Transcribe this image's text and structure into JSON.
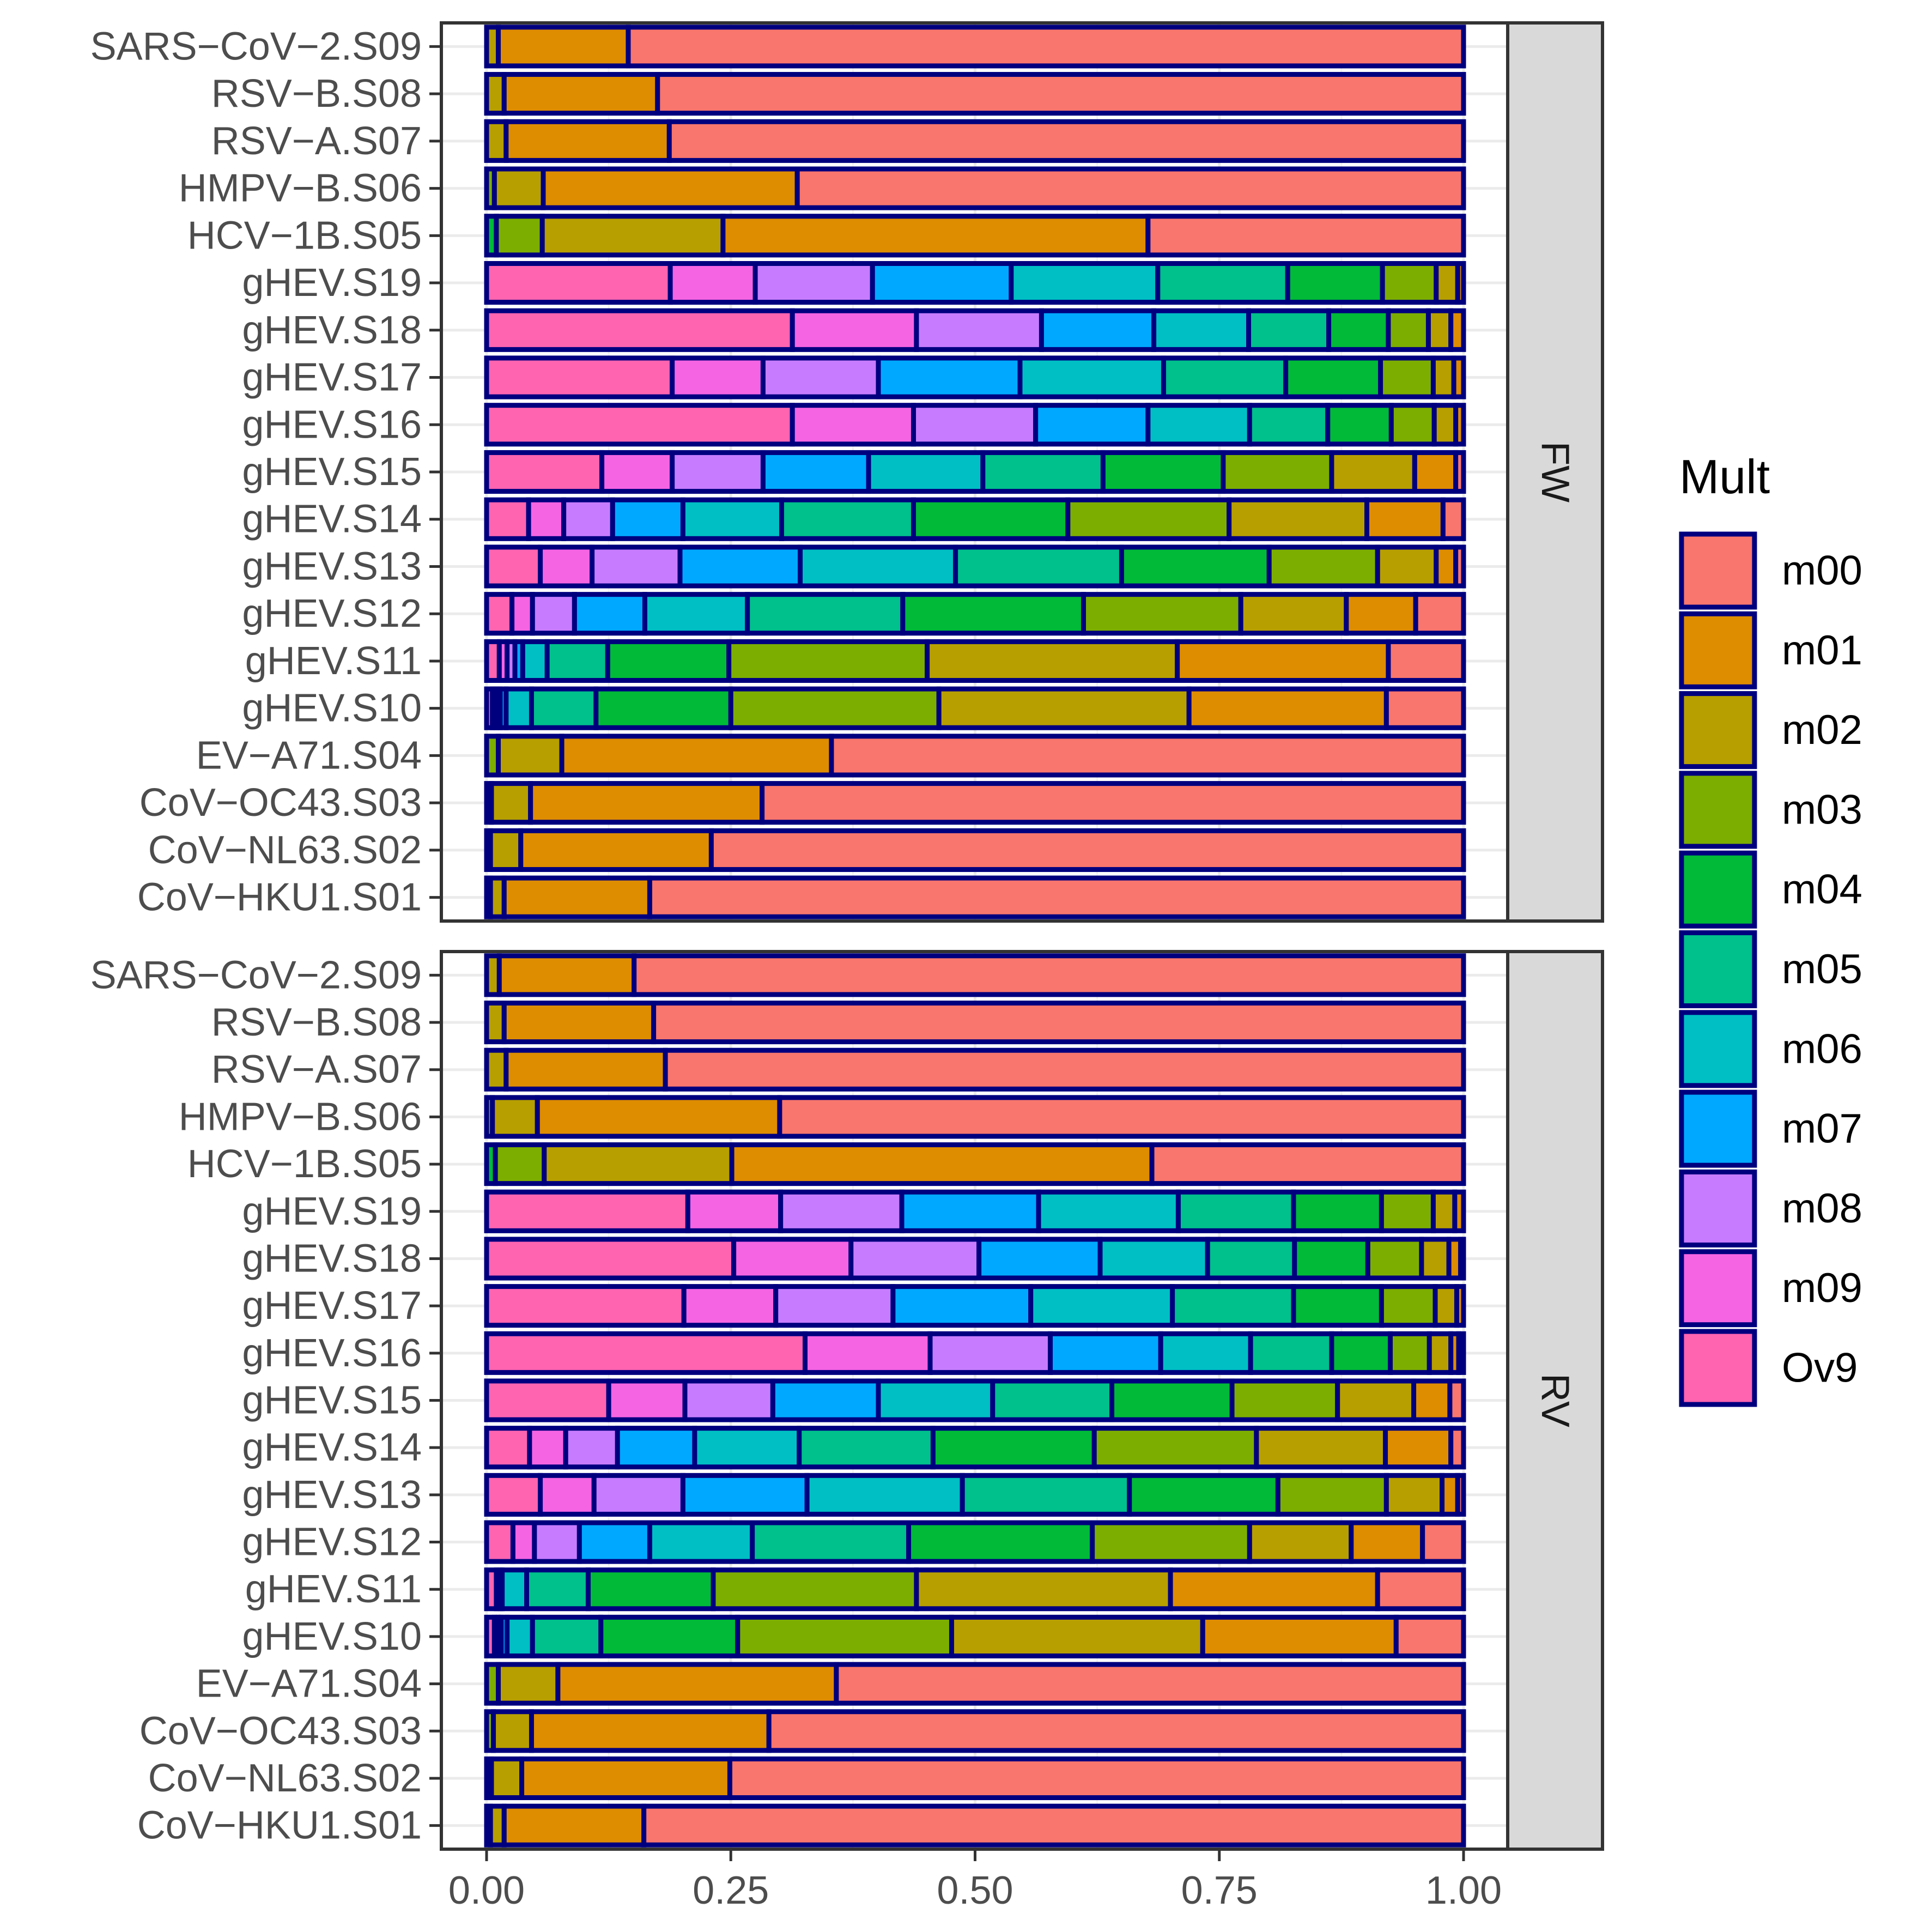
{
  "chart_data": {
    "type": "bar",
    "orientation": "horizontal",
    "stacked": true,
    "x_axis": {
      "ticks": [
        0,
        0.25,
        0.5,
        0.75,
        1.0
      ],
      "tick_labels": [
        "0.00",
        "0.25",
        "0.50",
        "0.75",
        "1.00"
      ],
      "xlim": [
        0,
        1.05
      ]
    },
    "categories": [
      "SARS−CoV−2.S09",
      "RSV−B.S08",
      "RSV−A.S07",
      "HMPV−B.S06",
      "HCV−1B.S05",
      "gHEV.S19",
      "gHEV.S18",
      "gHEV.S17",
      "gHEV.S16",
      "gHEV.S15",
      "gHEV.S14",
      "gHEV.S13",
      "gHEV.S12",
      "gHEV.S11",
      "gHEV.S10",
      "EV−A71.S04",
      "CoV−OC43.S03",
      "CoV−NL63.S02",
      "CoV−HKU1.S01"
    ],
    "stack_order": [
      "Ov9",
      "m09",
      "m08",
      "m07",
      "m06",
      "m05",
      "m04",
      "m03",
      "m02",
      "m01",
      "m00"
    ],
    "legend": {
      "title": "Mult",
      "position": "right",
      "entries": [
        {
          "key": "m00",
          "label": "m00",
          "color": "#F8766D"
        },
        {
          "key": "m01",
          "label": "m01",
          "color": "#DE8C00"
        },
        {
          "key": "m02",
          "label": "m02",
          "color": "#B79F00"
        },
        {
          "key": "m03",
          "label": "m03",
          "color": "#7CAE00"
        },
        {
          "key": "m04",
          "label": "m04",
          "color": "#00BA38"
        },
        {
          "key": "m05",
          "label": "m05",
          "color": "#00C08B"
        },
        {
          "key": "m06",
          "label": "m06",
          "color": "#00BFC4"
        },
        {
          "key": "m07",
          "label": "m07",
          "color": "#00A9FF"
        },
        {
          "key": "m08",
          "label": "m08",
          "color": "#C77CFF"
        },
        {
          "key": "m09",
          "label": "m09",
          "color": "#F564E3"
        },
        {
          "key": "Ov9",
          "label": "Ov9",
          "color": "#FF64B0"
        }
      ]
    },
    "bar_outline_color": "#00007F",
    "panels": [
      {
        "label": "FW",
        "rows": [
          {
            "Ov9": 0,
            "m09": 0,
            "m08": 0,
            "m07": 0,
            "m06": 0,
            "m05": 0,
            "m04": 0,
            "m03": 0,
            "m02": 0.012,
            "m01": 0.133,
            "m00": 0.855
          },
          {
            "Ov9": 0,
            "m09": 0,
            "m08": 0,
            "m07": 0,
            "m06": 0,
            "m05": 0,
            "m04": 0,
            "m03": 0,
            "m02": 0.018,
            "m01": 0.157,
            "m00": 0.825
          },
          {
            "Ov9": 0,
            "m09": 0,
            "m08": 0,
            "m07": 0,
            "m06": 0,
            "m05": 0,
            "m04": 0,
            "m03": 0,
            "m02": 0.02,
            "m01": 0.167,
            "m00": 0.813
          },
          {
            "Ov9": 0,
            "m09": 0,
            "m08": 0,
            "m07": 0,
            "m06": 0,
            "m05": 0,
            "m04": 0,
            "m03": 0.008,
            "m02": 0.05,
            "m01": 0.26,
            "m00": 0.682
          },
          {
            "Ov9": 0,
            "m09": 0,
            "m08": 0,
            "m07": 0,
            "m06": 0,
            "m05": 0,
            "m04": 0.01,
            "m03": 0.047,
            "m02": 0.185,
            "m01": 0.435,
            "m00": 0.323
          },
          {
            "Ov9": 0.188,
            "m09": 0.087,
            "m08": 0.12,
            "m07": 0.142,
            "m06": 0.15,
            "m05": 0.133,
            "m04": 0.097,
            "m03": 0.055,
            "m02": 0.022,
            "m01": 0.006,
            "m00": 0
          },
          {
            "Ov9": 0.313,
            "m09": 0.127,
            "m08": 0.128,
            "m07": 0.115,
            "m06": 0.097,
            "m05": 0.082,
            "m04": 0.061,
            "m03": 0.041,
            "m02": 0.023,
            "m01": 0.013,
            "m00": 0
          },
          {
            "Ov9": 0.19,
            "m09": 0.093,
            "m08": 0.118,
            "m07": 0.145,
            "m06": 0.147,
            "m05": 0.125,
            "m04": 0.097,
            "m03": 0.054,
            "m02": 0.021,
            "m01": 0.01,
            "m00": 0
          },
          {
            "Ov9": 0.313,
            "m09": 0.124,
            "m08": 0.125,
            "m07": 0.115,
            "m06": 0.104,
            "m05": 0.08,
            "m04": 0.065,
            "m03": 0.044,
            "m02": 0.022,
            "m01": 0.008,
            "m00": 0
          },
          {
            "Ov9": 0.118,
            "m09": 0.072,
            "m08": 0.093,
            "m07": 0.108,
            "m06": 0.117,
            "m05": 0.123,
            "m04": 0.123,
            "m03": 0.111,
            "m02": 0.085,
            "m01": 0.042,
            "m00": 0.008
          },
          {
            "Ov9": 0.043,
            "m09": 0.036,
            "m08": 0.05,
            "m07": 0.072,
            "m06": 0.101,
            "m05": 0.135,
            "m04": 0.158,
            "m03": 0.165,
            "m02": 0.141,
            "m01": 0.078,
            "m00": 0.021
          },
          {
            "Ov9": 0.055,
            "m09": 0.053,
            "m08": 0.09,
            "m07": 0.123,
            "m06": 0.159,
            "m05": 0.17,
            "m04": 0.151,
            "m03": 0.111,
            "m02": 0.06,
            "m01": 0.02,
            "m00": 0.008
          },
          {
            "Ov9": 0.026,
            "m09": 0.021,
            "m08": 0.043,
            "m07": 0.072,
            "m06": 0.105,
            "m05": 0.159,
            "m04": 0.185,
            "m03": 0.161,
            "m02": 0.108,
            "m01": 0.071,
            "m00": 0.049
          },
          {
            "Ov9": 0.013,
            "m09": 0.008,
            "m08": 0.008,
            "m07": 0.008,
            "m06": 0.025,
            "m05": 0.062,
            "m04": 0.124,
            "m03": 0.203,
            "m02": 0.256,
            "m01": 0.216,
            "m00": 0.077
          },
          {
            "Ov9": 0.006,
            "m09": 0.004,
            "m08": 0.004,
            "m07": 0.006,
            "m06": 0.026,
            "m05": 0.066,
            "m04": 0.138,
            "m03": 0.213,
            "m02": 0.256,
            "m01": 0.202,
            "m00": 0.079
          },
          {
            "Ov9": 0,
            "m09": 0,
            "m08": 0,
            "m07": 0,
            "m06": 0,
            "m05": 0,
            "m04": 0,
            "m03": 0.012,
            "m02": 0.065,
            "m01": 0.276,
            "m00": 0.647
          },
          {
            "Ov9": 0,
            "m09": 0,
            "m08": 0,
            "m07": 0,
            "m06": 0,
            "m05": 0,
            "m04": 0,
            "m03": 0.005,
            "m02": 0.04,
            "m01": 0.237,
            "m00": 0.718
          },
          {
            "Ov9": 0,
            "m09": 0,
            "m08": 0,
            "m07": 0,
            "m06": 0,
            "m05": 0,
            "m04": 0,
            "m03": 0.004,
            "m02": 0.031,
            "m01": 0.195,
            "m00": 0.77
          },
          {
            "Ov9": 0,
            "m09": 0,
            "m08": 0,
            "m07": 0,
            "m06": 0,
            "m05": 0,
            "m04": 0,
            "m03": 0.004,
            "m02": 0.014,
            "m01": 0.149,
            "m00": 0.833
          }
        ]
      },
      {
        "label": "RV",
        "rows": [
          {
            "Ov9": 0,
            "m09": 0,
            "m08": 0,
            "m07": 0,
            "m06": 0,
            "m05": 0,
            "m04": 0,
            "m03": 0,
            "m02": 0.013,
            "m01": 0.138,
            "m00": 0.849
          },
          {
            "Ov9": 0,
            "m09": 0,
            "m08": 0,
            "m07": 0,
            "m06": 0,
            "m05": 0,
            "m04": 0,
            "m03": 0,
            "m02": 0.018,
            "m01": 0.153,
            "m00": 0.829
          },
          {
            "Ov9": 0,
            "m09": 0,
            "m08": 0,
            "m07": 0,
            "m06": 0,
            "m05": 0,
            "m04": 0,
            "m03": 0,
            "m02": 0.02,
            "m01": 0.163,
            "m00": 0.817
          },
          {
            "Ov9": 0,
            "m09": 0,
            "m08": 0,
            "m07": 0,
            "m06": 0,
            "m05": 0,
            "m04": 0,
            "m03": 0.006,
            "m02": 0.046,
            "m01": 0.248,
            "m00": 0.7
          },
          {
            "Ov9": 0,
            "m09": 0,
            "m08": 0,
            "m07": 0,
            "m06": 0,
            "m05": 0,
            "m04": 0.009,
            "m03": 0.05,
            "m02": 0.192,
            "m01": 0.43,
            "m00": 0.319
          },
          {
            "Ov9": 0.206,
            "m09": 0.095,
            "m08": 0.124,
            "m07": 0.14,
            "m06": 0.143,
            "m05": 0.118,
            "m04": 0.09,
            "m03": 0.053,
            "m02": 0.022,
            "m01": 0.009,
            "m00": 0
          },
          {
            "Ov9": 0.253,
            "m09": 0.12,
            "m08": 0.131,
            "m07": 0.124,
            "m06": 0.11,
            "m05": 0.089,
            "m04": 0.075,
            "m03": 0.055,
            "m02": 0.028,
            "m01": 0.012,
            "m00": 0.003
          },
          {
            "Ov9": 0.202,
            "m09": 0.094,
            "m08": 0.12,
            "m07": 0.141,
            "m06": 0.145,
            "m05": 0.124,
            "m04": 0.09,
            "m03": 0.055,
            "m02": 0.022,
            "m01": 0.007,
            "m00": 0
          },
          {
            "Ov9": 0.326,
            "m09": 0.128,
            "m08": 0.123,
            "m07": 0.113,
            "m06": 0.092,
            "m05": 0.083,
            "m04": 0.06,
            "m03": 0.04,
            "m02": 0.022,
            "m01": 0.008,
            "m00": 0.005
          },
          {
            "Ov9": 0.125,
            "m09": 0.078,
            "m08": 0.09,
            "m07": 0.108,
            "m06": 0.117,
            "m05": 0.122,
            "m04": 0.123,
            "m03": 0.108,
            "m02": 0.078,
            "m01": 0.037,
            "m00": 0.014
          },
          {
            "Ov9": 0.044,
            "m09": 0.037,
            "m08": 0.053,
            "m07": 0.079,
            "m06": 0.107,
            "m05": 0.137,
            "m04": 0.165,
            "m03": 0.166,
            "m02": 0.132,
            "m01": 0.067,
            "m00": 0.013
          },
          {
            "Ov9": 0.055,
            "m09": 0.055,
            "m08": 0.091,
            "m07": 0.127,
            "m06": 0.159,
            "m05": 0.171,
            "m04": 0.152,
            "m03": 0.111,
            "m02": 0.057,
            "m01": 0.016,
            "m00": 0.006
          },
          {
            "Ov9": 0.027,
            "m09": 0.022,
            "m08": 0.046,
            "m07": 0.072,
            "m06": 0.105,
            "m05": 0.16,
            "m04": 0.188,
            "m03": 0.161,
            "m02": 0.104,
            "m01": 0.073,
            "m00": 0.042
          },
          {
            "Ov9": 0.01,
            "m09": 0.004,
            "m08": 0.002,
            "m07": 0,
            "m06": 0.025,
            "m05": 0.063,
            "m04": 0.128,
            "m03": 0.208,
            "m02": 0.26,
            "m01": 0.212,
            "m00": 0.088
          },
          {
            "Ov9": 0.008,
            "m09": 0.004,
            "m08": 0.003,
            "m07": 0.006,
            "m06": 0.026,
            "m05": 0.07,
            "m04": 0.14,
            "m03": 0.219,
            "m02": 0.257,
            "m01": 0.198,
            "m00": 0.069
          },
          {
            "Ov9": 0,
            "m09": 0,
            "m08": 0,
            "m07": 0,
            "m06": 0,
            "m05": 0,
            "m04": 0,
            "m03": 0.012,
            "m02": 0.061,
            "m01": 0.285,
            "m00": 0.642
          },
          {
            "Ov9": 0,
            "m09": 0,
            "m08": 0,
            "m07": 0,
            "m06": 0,
            "m05": 0,
            "m04": 0,
            "m03": 0.007,
            "m02": 0.039,
            "m01": 0.243,
            "m00": 0.711
          },
          {
            "Ov9": 0,
            "m09": 0,
            "m08": 0,
            "m07": 0,
            "m06": 0,
            "m05": 0,
            "m04": 0,
            "m03": 0.005,
            "m02": 0.031,
            "m01": 0.213,
            "m00": 0.751
          },
          {
            "Ov9": 0,
            "m09": 0,
            "m08": 0,
            "m07": 0,
            "m06": 0,
            "m05": 0,
            "m04": 0,
            "m03": 0.004,
            "m02": 0.014,
            "m01": 0.143,
            "m00": 0.839
          }
        ]
      }
    ]
  }
}
